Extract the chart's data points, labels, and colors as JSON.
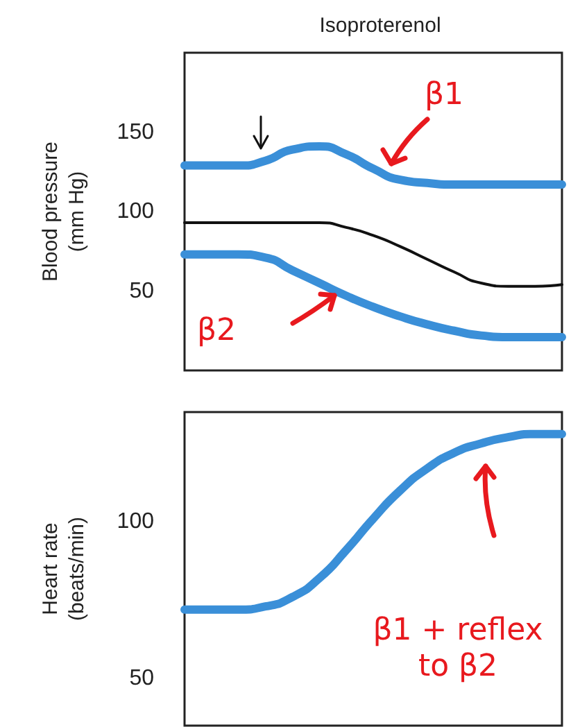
{
  "chart_data": [
    {
      "type": "line",
      "title": "Isoproterenol",
      "ylabel": "Blood pressure (mm Hg)",
      "categories": [
        null,
        null,
        null,
        null,
        null,
        null,
        null,
        null,
        null,
        null,
        null,
        null,
        null,
        null,
        null
      ],
      "series": [
        {
          "color": "#3a8fd8",
          "values": [
            129,
            129,
            129,
            132,
            139,
            141,
            136,
            127,
            120,
            118,
            117,
            117,
            117,
            117,
            117
          ]
        },
        {
          "color": "#111111",
          "values": [
            93,
            93,
            93,
            93,
            93,
            93,
            90,
            85,
            78,
            70,
            62,
            55,
            53,
            53,
            54
          ]
        },
        {
          "color": "#3a8fd8",
          "values": [
            73,
            73,
            73,
            71,
            63,
            55,
            47,
            40,
            34,
            29,
            25,
            22,
            21,
            21,
            21
          ]
        }
      ],
      "ylim": [
        0,
        200
      ],
      "yticks": [
        50,
        100,
        150
      ],
      "tick_labels": "y",
      "grid": false,
      "legend": false,
      "marker": "none",
      "line_style": "solid",
      "annotations": [
        "β1",
        "β2"
      ]
    },
    {
      "type": "line",
      "ylabel": "Heart rate (beats/min)",
      "categories": [
        null,
        null,
        null,
        null,
        null,
        null,
        null,
        null,
        null,
        null,
        null,
        null,
        null,
        null,
        null
      ],
      "series": [
        {
          "color": "#3a8fd8",
          "values": [
            72,
            72,
            72,
            73,
            76,
            82,
            91,
            101,
            110,
            117,
            122,
            125,
            127,
            128,
            128
          ]
        }
      ],
      "ylim": [
        35,
        135
      ],
      "yticks": [
        50,
        100
      ],
      "tick_labels": "y",
      "grid": false,
      "legend": false,
      "marker": "none",
      "line_style": "solid",
      "annotations": [
        "β1 + reflex to β2"
      ]
    }
  ]
}
